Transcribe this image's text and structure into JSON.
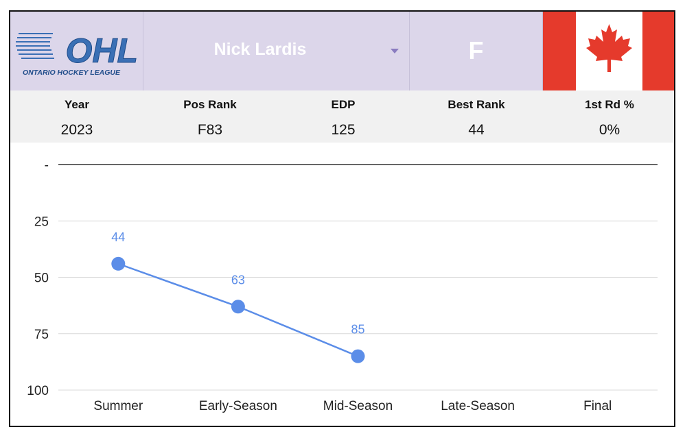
{
  "header": {
    "league_logo_text": "OHL",
    "league_name": "ONTARIO HOCKEY LEAGUE",
    "player_name": "Nick Lardis",
    "position": "F",
    "flag": "canada-flag",
    "colors": {
      "header_bg": "#dcd6ea",
      "flag_red": "#e53a2c",
      "logo_blue": "#3a6fb5"
    }
  },
  "stats": [
    {
      "label": "Year",
      "value": "2023"
    },
    {
      "label": "Pos Rank",
      "value": "F83"
    },
    {
      "label": "EDP",
      "value": "125"
    },
    {
      "label": "Best Rank",
      "value": "44"
    },
    {
      "label": "1st Rd %",
      "value": "0%"
    }
  ],
  "chart_data": {
    "type": "line",
    "categories": [
      "Summer",
      "Early-Season",
      "Mid-Season",
      "Late-Season",
      "Final"
    ],
    "series": [
      {
        "values": [
          44,
          63,
          85,
          null,
          null
        ],
        "color": "#5b8de8"
      }
    ],
    "y_tick_labels": [
      "-",
      "25",
      "50",
      "75",
      "100"
    ],
    "ylim": [
      0,
      100
    ],
    "y_inverted": true,
    "data_labels": true,
    "grid": true
  }
}
